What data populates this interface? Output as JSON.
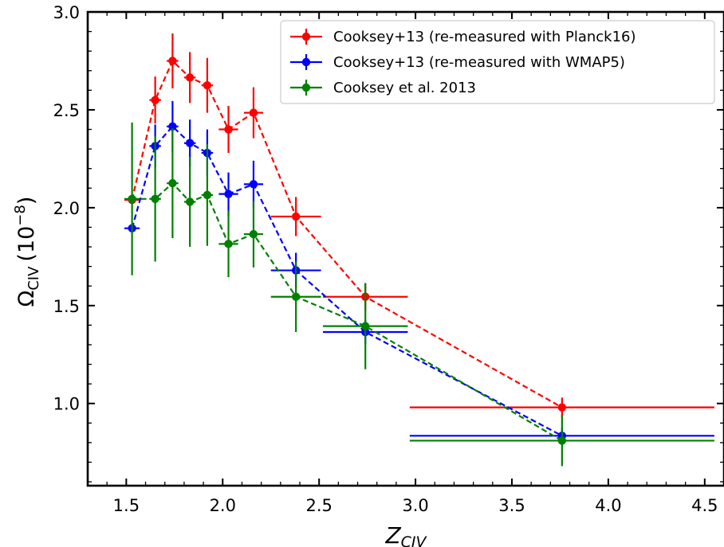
{
  "chart_data": {
    "type": "scatter",
    "xlabel": "Z_CIV",
    "ylabel_main": "Ω",
    "ylabel_sub": "CIV",
    "ylabel_unit_base": "(10",
    "ylabel_unit_exp": "−8",
    "ylabel_unit_close": ")",
    "xlim": [
      1.3,
      4.6
    ],
    "ylim": [
      0.58,
      3.0
    ],
    "xticks": [
      1.5,
      2.0,
      2.5,
      3.0,
      3.5,
      4.0,
      4.5
    ],
    "xtick_labels": [
      "1.5",
      "2.0",
      "2.5",
      "3.0",
      "3.5",
      "4.0",
      "4.5"
    ],
    "yticks": [
      1.0,
      1.5,
      2.0,
      2.5,
      3.0
    ],
    "ytick_labels": [
      "1.0",
      "1.5",
      "2.0",
      "2.5",
      "3.0"
    ],
    "legend_position": "top-right",
    "grid": false,
    "series": [
      {
        "name": "Cooksey+13 (re-measured with Planck16)",
        "color": "#ff0000",
        "x": [
          1.53,
          1.65,
          1.74,
          1.83,
          1.92,
          2.03,
          2.16,
          2.38,
          2.74,
          3.76
        ],
        "y": [
          2.04,
          2.55,
          2.75,
          2.665,
          2.625,
          2.4,
          2.485,
          1.955,
          1.545,
          0.98
        ],
        "xerr": [
          0.04,
          0.03,
          0.03,
          0.03,
          0.03,
          0.05,
          0.05,
          0.13,
          0.22,
          0.79
        ],
        "yerr": [
          0.0,
          0.12,
          0.14,
          0.13,
          0.14,
          0.12,
          0.13,
          0.1,
          0.07,
          0.05
        ]
      },
      {
        "name": "Cooksey+13 (re-measured with WMAP5)",
        "color": "#0000ff",
        "x": [
          1.53,
          1.65,
          1.74,
          1.83,
          1.92,
          2.03,
          2.16,
          2.38,
          2.74,
          3.76
        ],
        "y": [
          1.895,
          2.315,
          2.415,
          2.33,
          2.28,
          2.07,
          2.12,
          1.68,
          1.365,
          0.835
        ],
        "xerr": [
          0.04,
          0.03,
          0.03,
          0.03,
          0.03,
          0.05,
          0.05,
          0.13,
          0.22,
          0.79
        ],
        "yerr": [
          0.0,
          0.11,
          0.13,
          0.12,
          0.12,
          0.11,
          0.12,
          0.09,
          0.06,
          0.04
        ]
      },
      {
        "name": "Cooksey et al. 2013",
        "color": "#008000",
        "x": [
          1.53,
          1.65,
          1.74,
          1.83,
          1.92,
          2.03,
          2.16,
          2.38,
          2.74,
          3.76
        ],
        "y": [
          2.045,
          2.045,
          2.125,
          2.03,
          2.065,
          1.815,
          1.865,
          1.545,
          1.395,
          0.81
        ],
        "xerr": [
          0.04,
          0.03,
          0.03,
          0.03,
          0.03,
          0.05,
          0.05,
          0.13,
          0.22,
          0.79
        ],
        "yerr": [
          0.39,
          0.32,
          0.28,
          0.23,
          0.26,
          0.17,
          0.17,
          0.18,
          0.22,
          0.13
        ]
      }
    ]
  }
}
